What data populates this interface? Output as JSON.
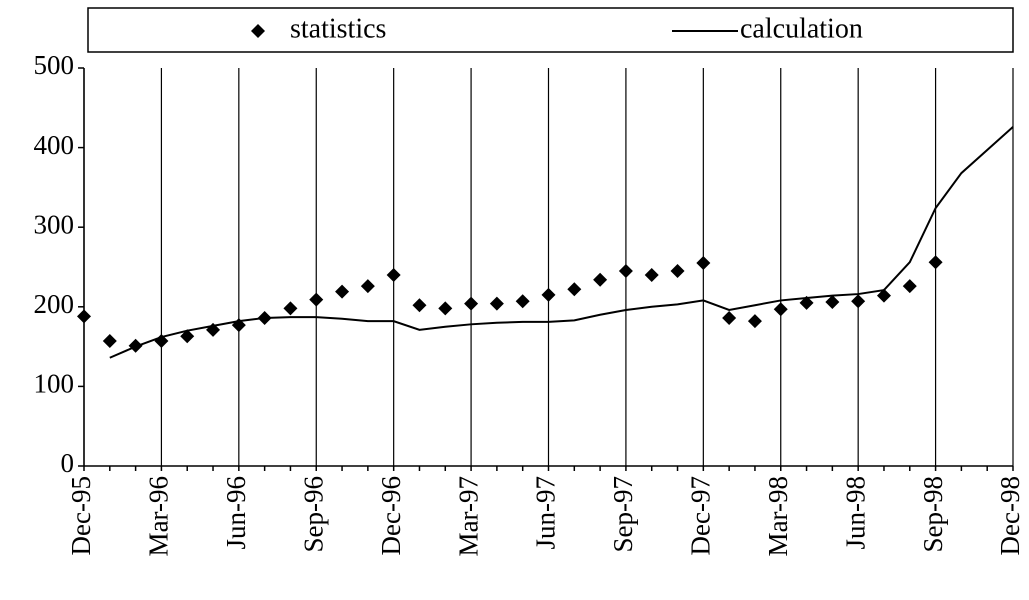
{
  "chart_data": {
    "type": "line",
    "categories": [
      "Dec-95",
      null,
      null,
      "Mar-96",
      null,
      null,
      "Jun-96",
      null,
      null,
      "Sep-96",
      null,
      null,
      "Dec-96",
      null,
      null,
      "Mar-97",
      null,
      null,
      "Jun-97",
      null,
      null,
      "Sep-97",
      null,
      null,
      "Dec-97",
      null,
      null,
      "Mar-98",
      null,
      null,
      "Jun-98",
      null,
      null,
      "Sep-98",
      null,
      null,
      "Dec-98"
    ],
    "series": [
      {
        "name": "statistics",
        "style": "markers",
        "color": "#000000",
        "values": [
          188,
          157,
          151,
          157,
          163,
          171,
          177,
          186,
          198,
          209,
          219,
          226,
          240,
          202,
          198,
          204,
          204,
          207,
          215,
          222,
          234,
          245,
          240,
          245,
          255,
          186,
          182,
          197,
          205,
          206,
          207,
          214,
          226,
          256,
          null,
          null,
          null
        ]
      },
      {
        "name": "calculation",
        "style": "line",
        "color": "#000000",
        "values": [
          null,
          136,
          150,
          162,
          170,
          176,
          182,
          186,
          187,
          187,
          185,
          182,
          182,
          171,
          175,
          178,
          180,
          181,
          181,
          183,
          190,
          196,
          200,
          203,
          208,
          196,
          202,
          208,
          211,
          214,
          216,
          221,
          256,
          324,
          368,
          397,
          426
        ]
      }
    ],
    "ylim": [
      0,
      500
    ],
    "yticks": [
      0,
      100,
      200,
      300,
      400,
      500
    ],
    "grid": true,
    "legend": "top"
  }
}
